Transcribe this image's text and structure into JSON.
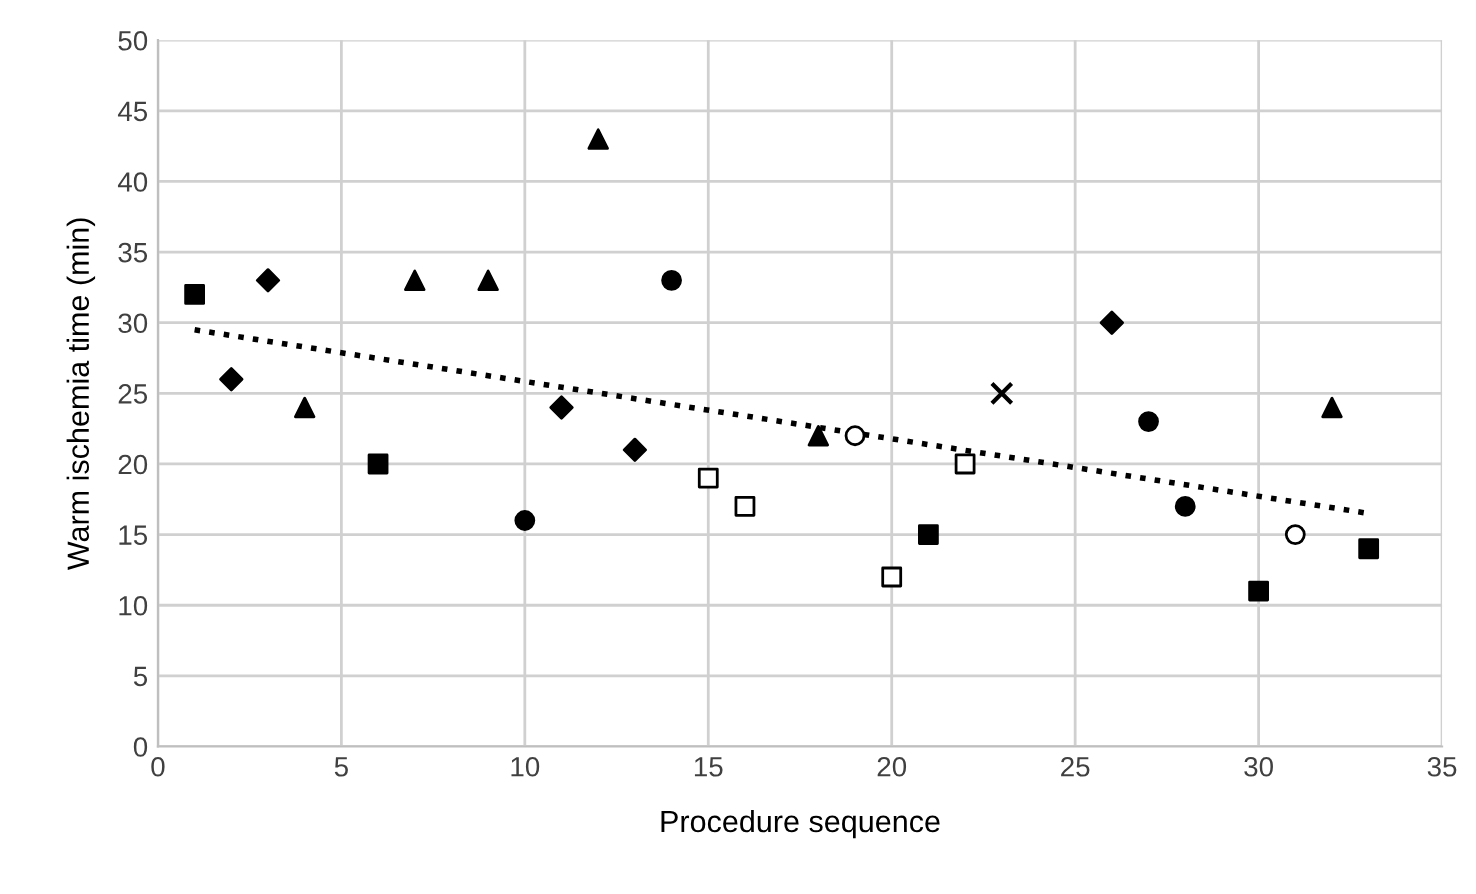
{
  "chart_data": {
    "type": "scatter",
    "xlabel": "Procedure sequence",
    "ylabel": "Warm ischemia time (min)",
    "xlim": [
      0,
      35
    ],
    "xticks": [
      0,
      5,
      10,
      15,
      20,
      25,
      30,
      35
    ],
    "ylim": [
      0,
      50
    ],
    "yticks": [
      0,
      5,
      10,
      15,
      20,
      25,
      30,
      35,
      40,
      45,
      50
    ],
    "grid": true,
    "series": [
      {
        "color": "#000000",
        "marker": "square",
        "x": [
          1,
          6,
          21,
          30,
          33
        ],
        "values": [
          32,
          20,
          15,
          11,
          14
        ]
      },
      {
        "color": "#000000",
        "marker": "diamond",
        "x": [
          2,
          3,
          11,
          13,
          26
        ],
        "values": [
          26,
          33,
          24,
          21,
          30
        ]
      },
      {
        "color": "#000000",
        "marker": "triangle",
        "x": [
          4,
          7,
          9,
          12,
          18,
          32
        ],
        "values": [
          24,
          33,
          33,
          43,
          22,
          24
        ]
      },
      {
        "color": "#000000",
        "marker": "circle",
        "x": [
          10,
          14,
          27,
          28
        ],
        "values": [
          16,
          33,
          23,
          17
        ]
      },
      {
        "color": "#ffffff",
        "marker": "square",
        "x": [
          15,
          16,
          20,
          22
        ],
        "values": [
          19,
          17,
          12,
          20
        ]
      },
      {
        "color": "#ffffff",
        "marker": "circle",
        "x": [
          19,
          31
        ],
        "values": [
          22,
          15
        ]
      },
      {
        "color": "#000000",
        "marker": "cross",
        "x": [
          23
        ],
        "values": [
          25
        ]
      },
      {
        "type": "line",
        "color": "#000000",
        "line_style": "dotted",
        "marker": "none",
        "x": [
          1,
          33
        ],
        "values": [
          29.5,
          16.5
        ]
      }
    ]
  }
}
